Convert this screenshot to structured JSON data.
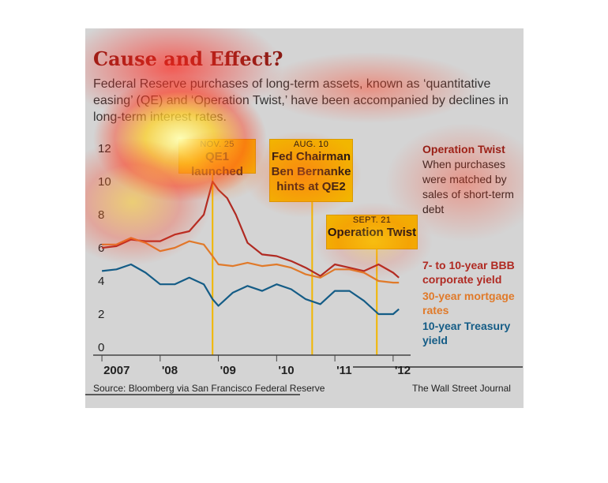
{
  "header": {
    "title": "Cause and Effect?",
    "subtitle": "Federal Reserve purchases of long-term assets, known as ‘quantitative easing’ (QE) and ‘Operation Twist,’ have been accompanied by declines in long-term interest rates."
  },
  "annotations": [
    {
      "date": "NOV. 25",
      "text": "QE1 launched",
      "x": 2008.9
    },
    {
      "date": "AUG. 10",
      "text": "Fed Chairman Ben Bernanke hints at QE2",
      "x": 2010.61
    },
    {
      "date": "SEPT. 21",
      "text": "Operation Twist",
      "x": 2011.72
    }
  ],
  "legend": {
    "operation_twist": {
      "title": "Operation Twist",
      "text": "When purchases were matched by sales of short-term debt"
    },
    "bbb": "7- to 10-year BBB corporate yield",
    "mortgage": "30-year mortgage rates",
    "treasury": "10-year Treasury yield"
  },
  "footer": {
    "source": "Source: Bloomberg via San Francisco Federal Reserve",
    "publisher": "The Wall Street Journal"
  },
  "colors": {
    "bbb": "#b02a22",
    "mortgage": "#e07a2a",
    "treasury": "#145c86",
    "annotation": "#f2b600",
    "title": "#8a1a14"
  },
  "chart_data": {
    "type": "line",
    "title": "Cause and Effect?",
    "xlabel": "",
    "ylabel": "",
    "ylim": [
      0,
      12
    ],
    "xlim": [
      2006.85,
      2012.3
    ],
    "y_ticks": [
      "12",
      "10",
      "8",
      "6",
      "4",
      "2",
      "0"
    ],
    "x_ticks": [
      "2007",
      "'08",
      "'09",
      "'10",
      "'11",
      "'12"
    ],
    "series": [
      {
        "name": "7- to 10-year BBB corporate yield",
        "x": [
          2007.0,
          2007.25,
          2007.5,
          2007.75,
          2008.0,
          2008.25,
          2008.5,
          2008.75,
          2008.9,
          2009.0,
          2009.15,
          2009.3,
          2009.5,
          2009.75,
          2010.0,
          2010.25,
          2010.5,
          2010.75,
          2011.0,
          2011.25,
          2011.5,
          2011.75,
          2012.0,
          2012.1
        ],
        "values": [
          6.0,
          6.1,
          6.5,
          6.4,
          6.4,
          6.8,
          7.0,
          8.0,
          10.0,
          9.5,
          9.0,
          8.0,
          6.3,
          5.6,
          5.5,
          5.2,
          4.8,
          4.3,
          5.0,
          4.8,
          4.6,
          5.0,
          4.5,
          4.2
        ]
      },
      {
        "name": "30-year mortgage rates",
        "x": [
          2007.0,
          2007.25,
          2007.5,
          2007.75,
          2008.0,
          2008.25,
          2008.5,
          2008.75,
          2008.9,
          2009.0,
          2009.25,
          2009.5,
          2009.75,
          2010.0,
          2010.25,
          2010.5,
          2010.75,
          2011.0,
          2011.25,
          2011.5,
          2011.75,
          2012.0,
          2012.1
        ],
        "values": [
          6.2,
          6.2,
          6.6,
          6.3,
          5.8,
          6.0,
          6.4,
          6.2,
          5.5,
          5.0,
          4.9,
          5.1,
          4.9,
          5.0,
          4.8,
          4.4,
          4.2,
          4.7,
          4.7,
          4.5,
          4.0,
          3.9,
          3.9
        ]
      },
      {
        "name": "10-year Treasury yield",
        "x": [
          2007.0,
          2007.25,
          2007.5,
          2007.75,
          2008.0,
          2008.25,
          2008.5,
          2008.75,
          2008.9,
          2009.0,
          2009.25,
          2009.5,
          2009.75,
          2010.0,
          2010.25,
          2010.5,
          2010.75,
          2011.0,
          2011.25,
          2011.5,
          2011.75,
          2012.0,
          2012.1
        ],
        "values": [
          4.6,
          4.7,
          5.0,
          4.5,
          3.8,
          3.8,
          4.2,
          3.8,
          2.9,
          2.5,
          3.3,
          3.7,
          3.4,
          3.8,
          3.5,
          2.9,
          2.6,
          3.4,
          3.4,
          2.8,
          2.0,
          2.0,
          2.3
        ]
      }
    ]
  }
}
